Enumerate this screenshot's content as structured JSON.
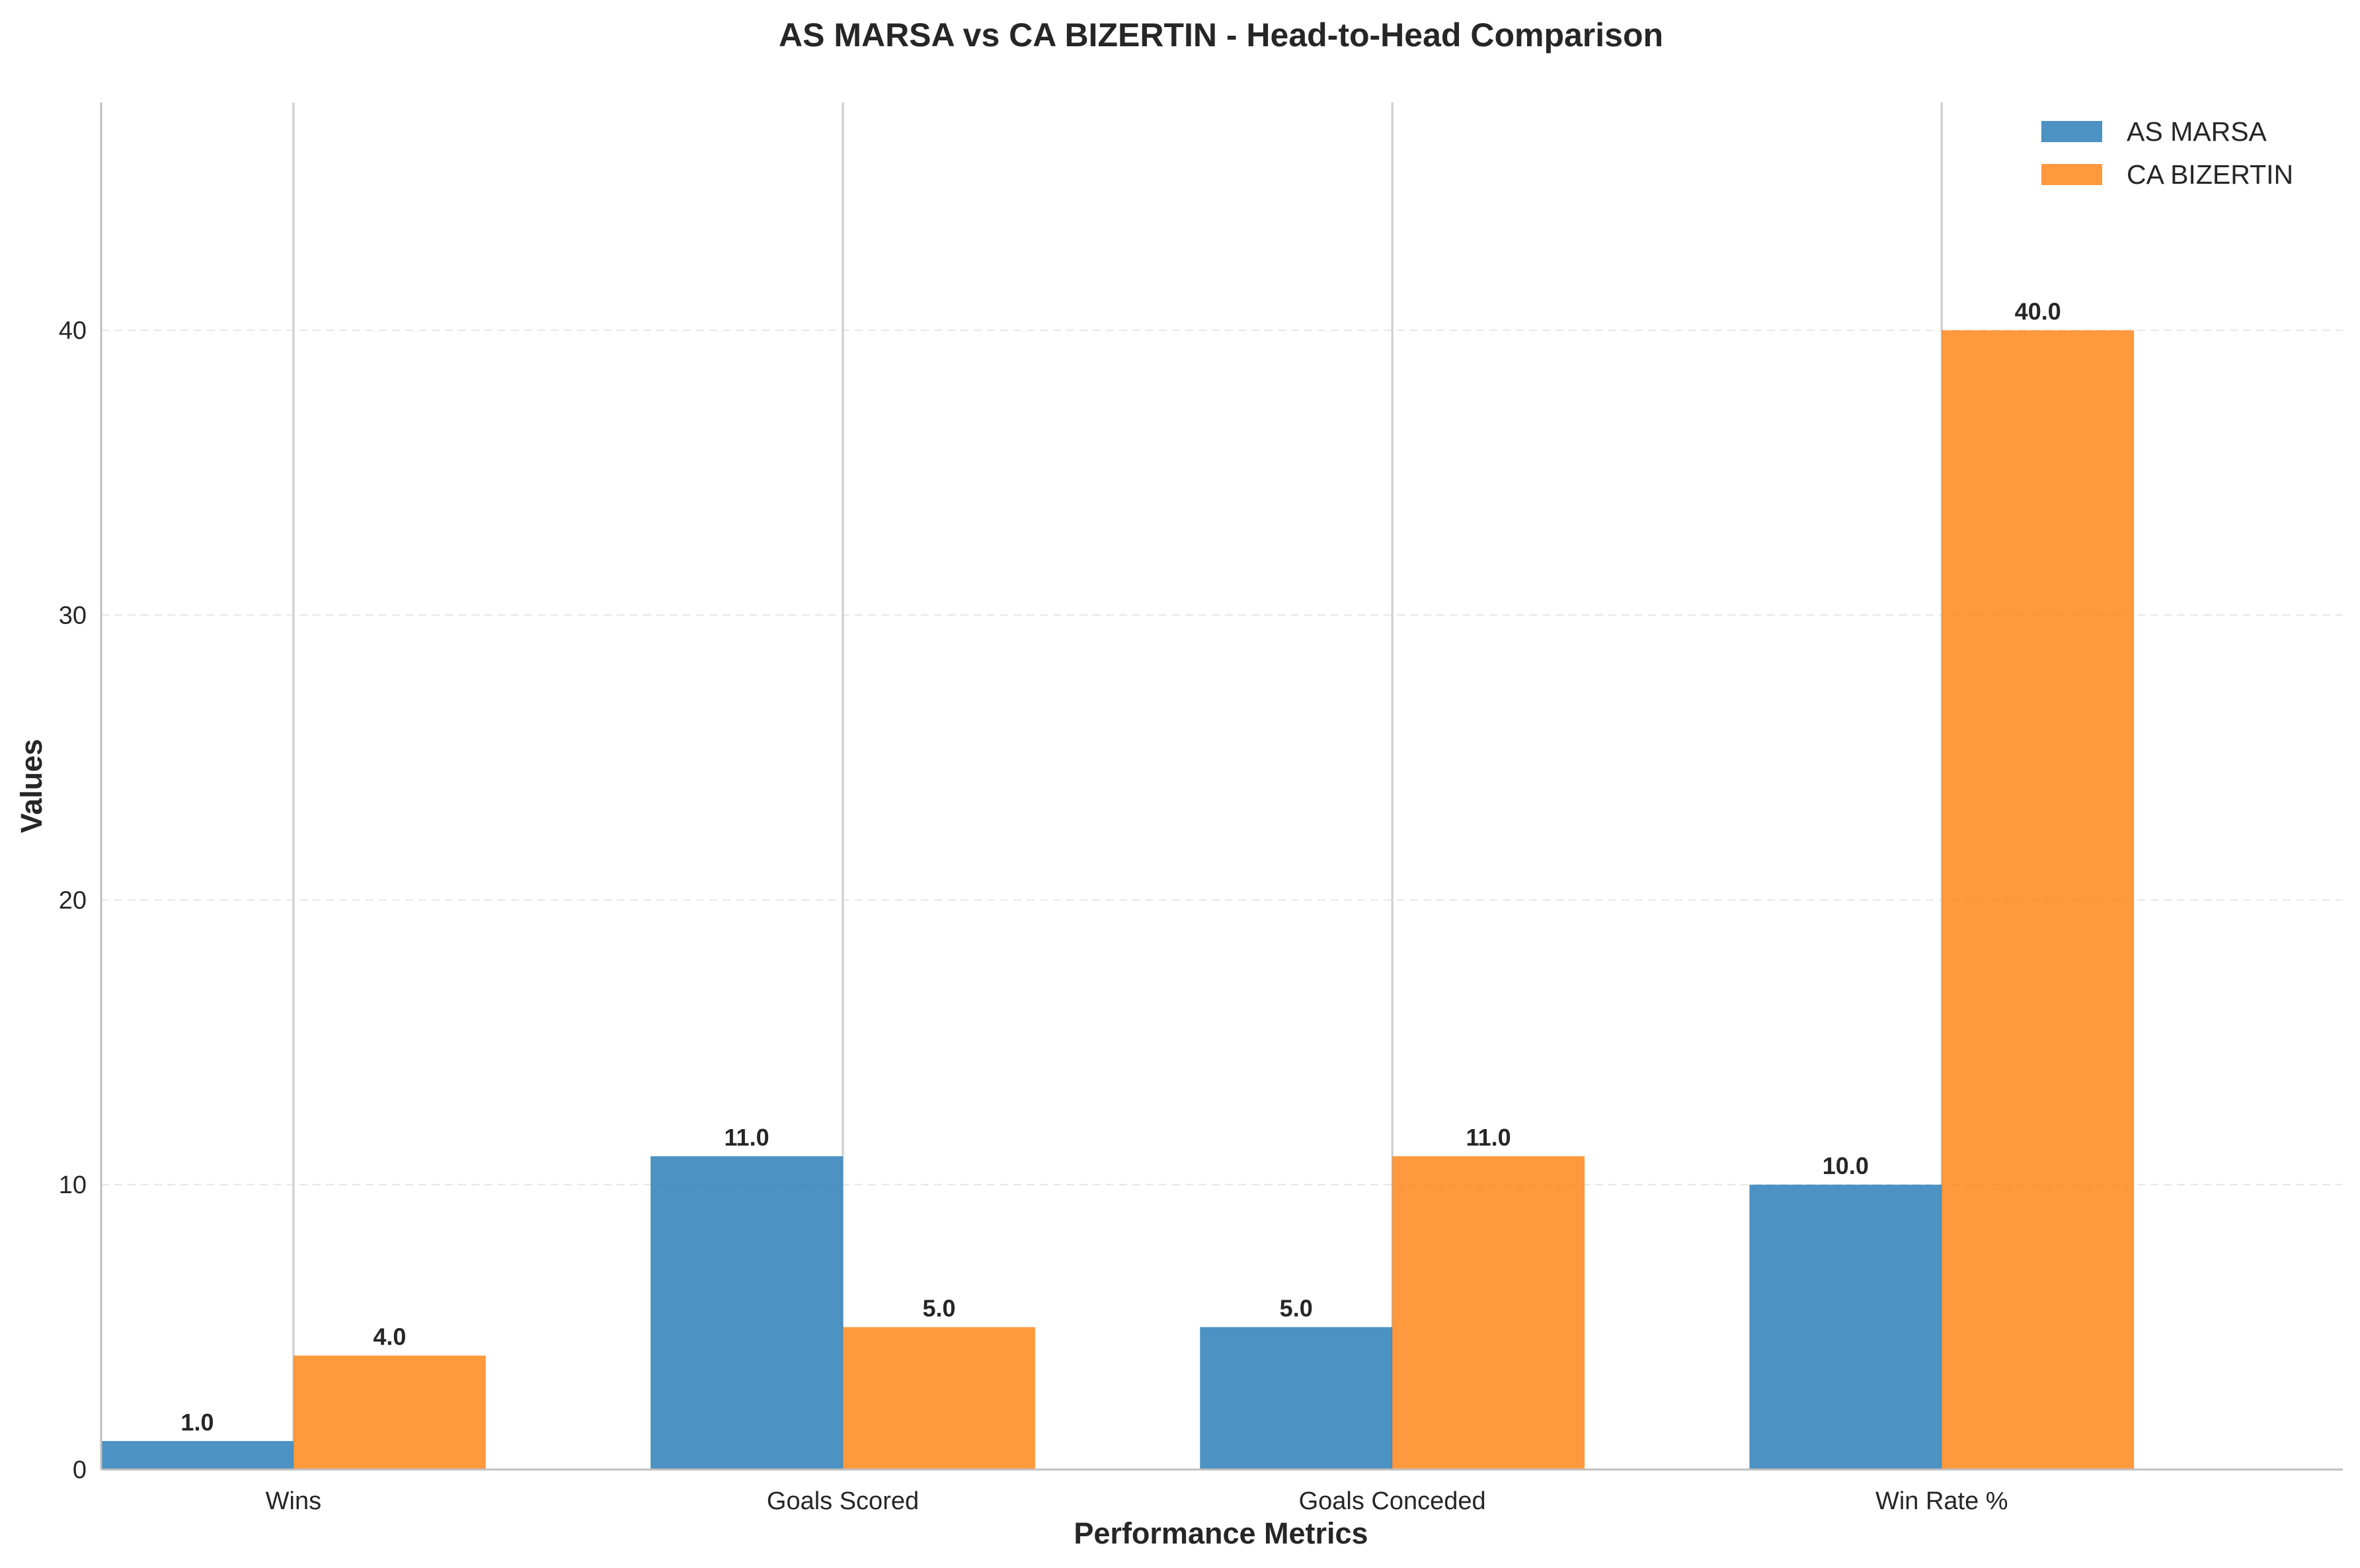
{
  "chart_data": {
    "type": "bar",
    "title": "AS MARSA vs CA BIZERTIN - Head-to-Head Comparison",
    "xlabel": "Performance Metrics",
    "ylabel": "Values",
    "categories": [
      "Wins",
      "Goals Scored",
      "Goals Conceded",
      "Win Rate %"
    ],
    "series": [
      {
        "name": "AS MARSA",
        "values": [
          1.0,
          11.0,
          5.0,
          10.0
        ],
        "color": "#1f77b4",
        "labels": [
          "1.0",
          "11.0",
          "5.0",
          "10.0"
        ]
      },
      {
        "name": "CA BIZERTIN",
        "values": [
          4.0,
          5.0,
          11.0,
          40.0
        ],
        "color": "#ff7f0e",
        "labels": [
          "4.0",
          "5.0",
          "11.0",
          "40.0"
        ]
      }
    ],
    "ylim": [
      0,
      48
    ],
    "yticks": [
      0,
      10,
      20,
      30,
      40
    ],
    "ytick_labels": [
      "0",
      "10",
      "20",
      "30",
      "40"
    ],
    "grid": "y-dashed",
    "legend_position": "top-right"
  }
}
